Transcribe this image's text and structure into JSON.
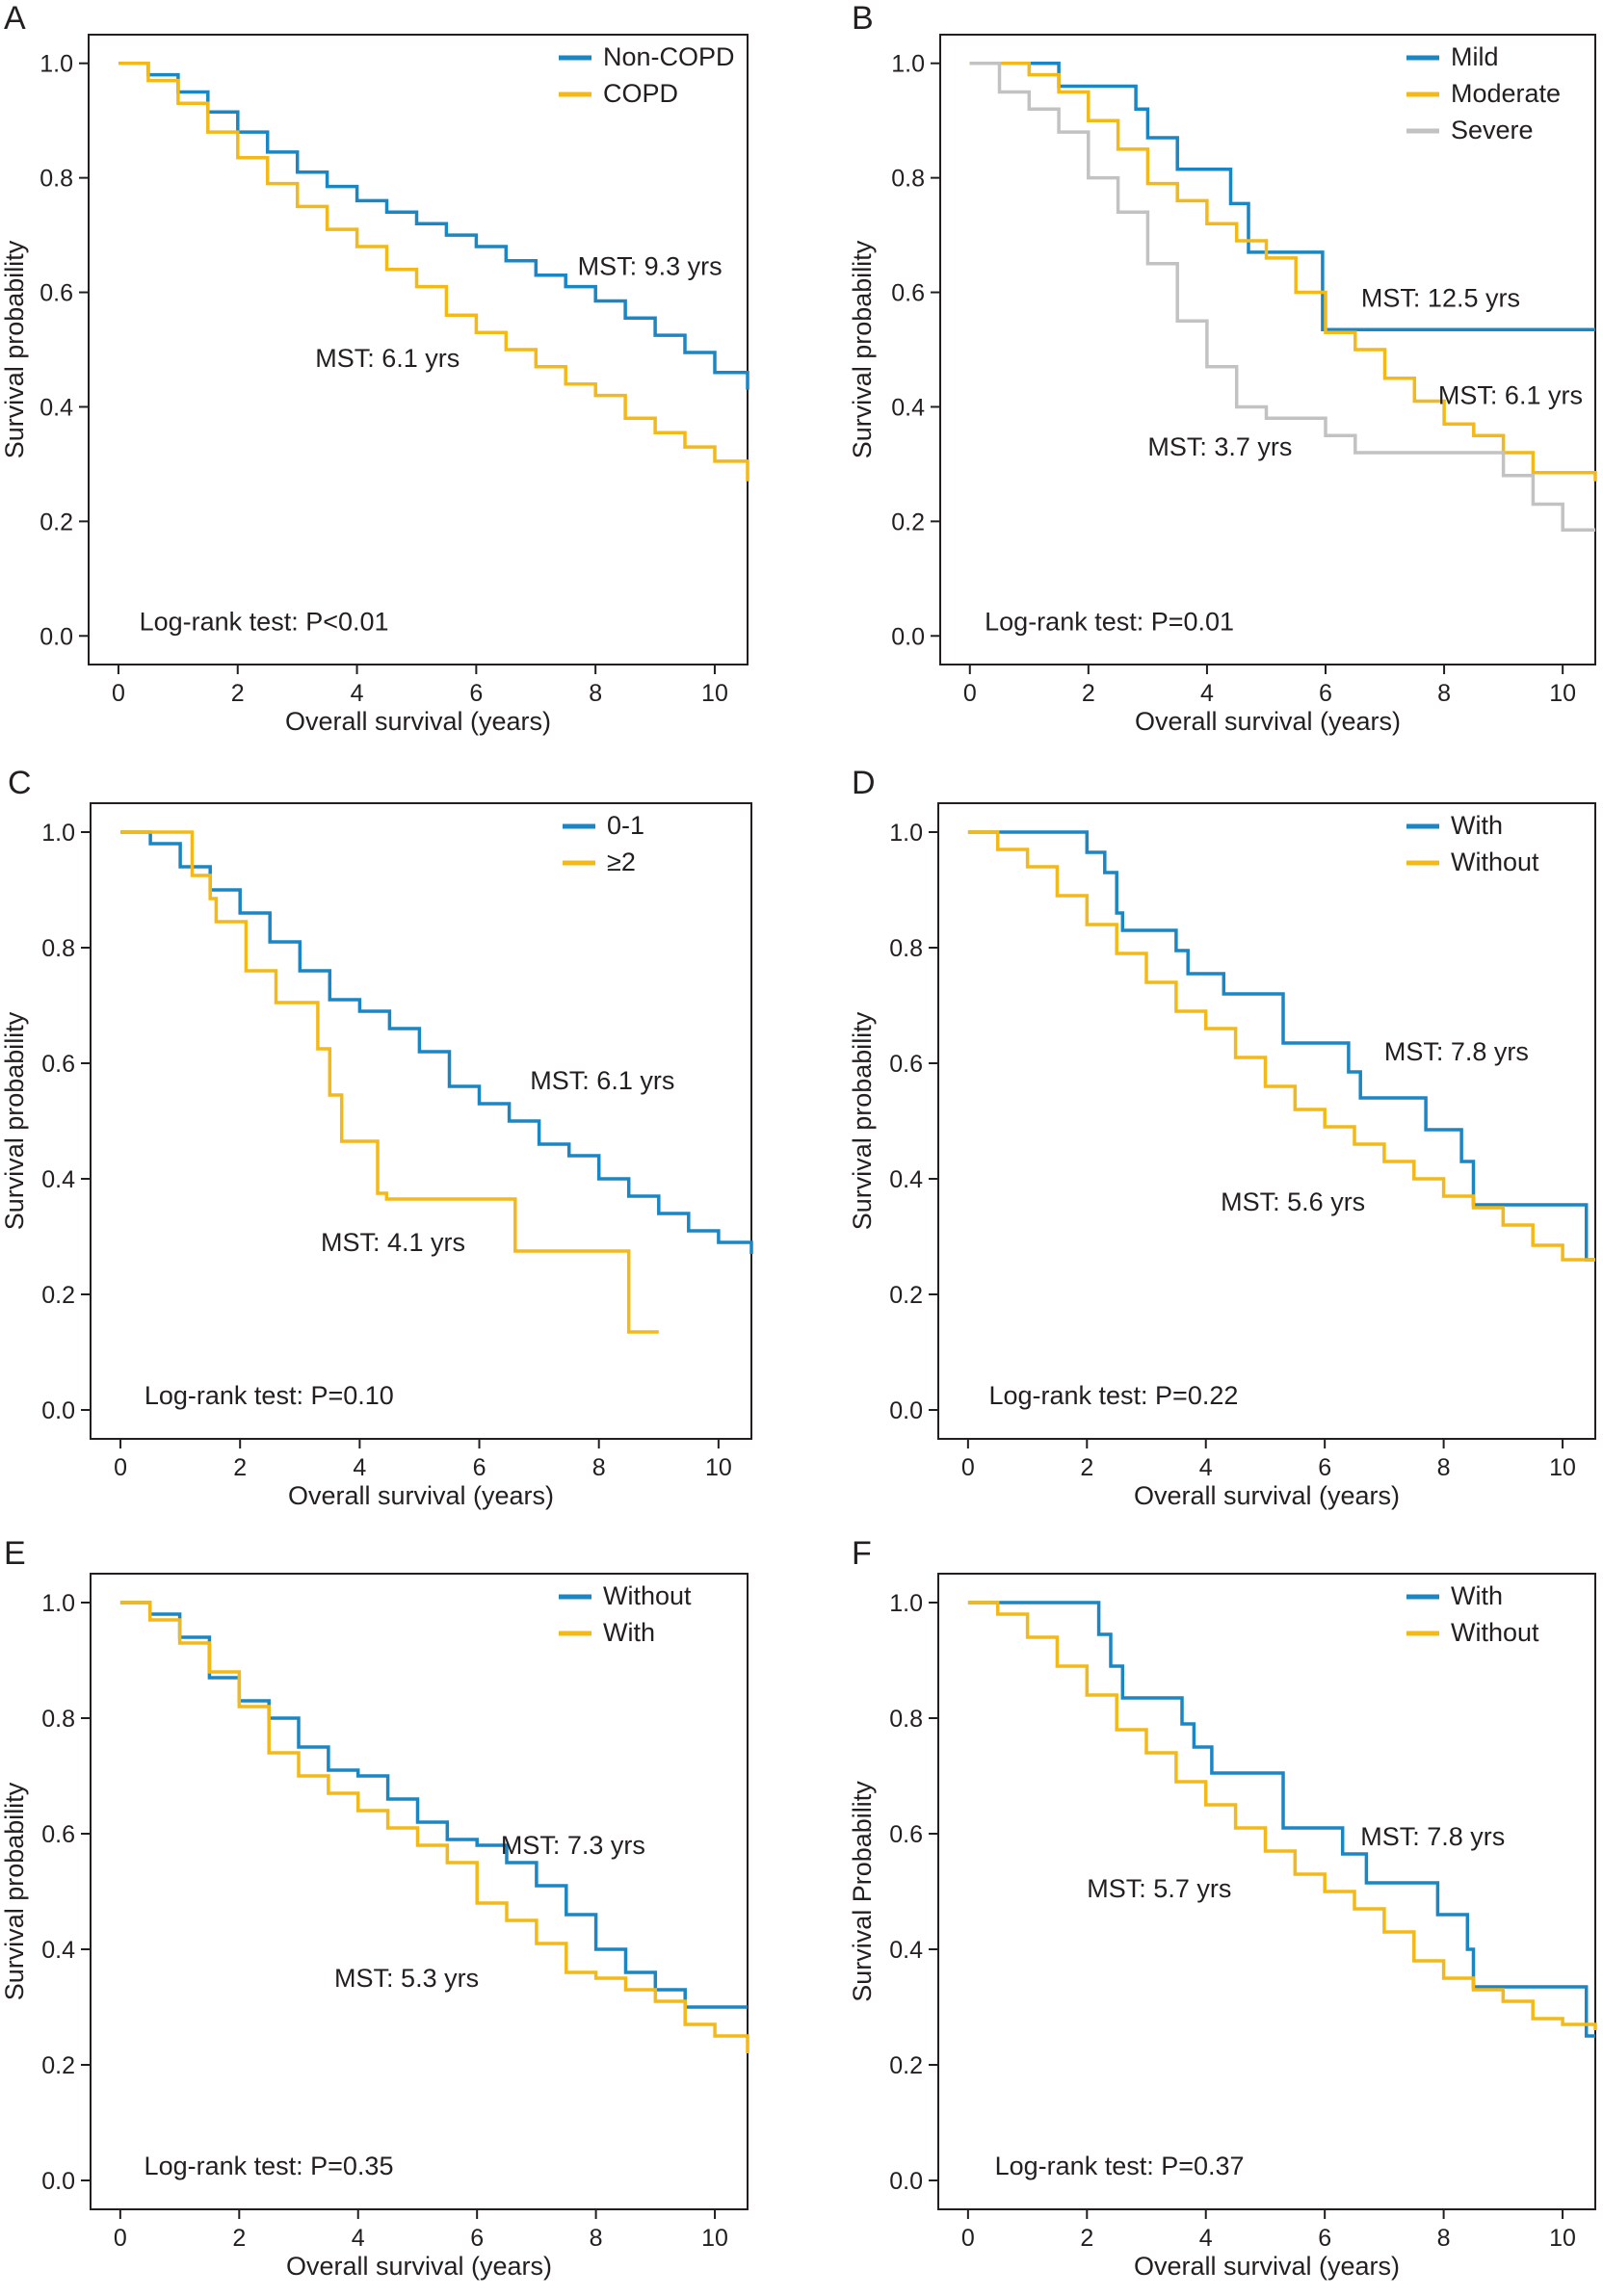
{
  "colors": {
    "blue": "#1a86c4",
    "yellow": "#f4b817",
    "gray": "#c2c2c2"
  },
  "chart_data": [
    {
      "letter": "A",
      "type": "line",
      "step": true,
      "xlabel": "Overall survival (years)",
      "ylabel": "Survival probability",
      "xlim": [
        -0.5,
        10.55
      ],
      "ylim": [
        -0.05,
        1.05
      ],
      "xticks": [
        "0",
        "2",
        "4",
        "6",
        "8",
        "10"
      ],
      "yticks": [
        "0.0",
        "0.2",
        "0.4",
        "0.6",
        "0.8",
        "1.0"
      ],
      "legend_position": "top-right",
      "series": [
        {
          "name": "Non-COPD",
          "color": "blue",
          "x": [
            0,
            0.5,
            1,
            1.5,
            2,
            2.5,
            3,
            3.5,
            4,
            4.5,
            5,
            5.5,
            6,
            6.5,
            7,
            7.5,
            8,
            8.5,
            9,
            9.5,
            10,
            10.55
          ],
          "y": [
            1.0,
            0.98,
            0.95,
            0.915,
            0.88,
            0.845,
            0.81,
            0.785,
            0.76,
            0.74,
            0.72,
            0.7,
            0.68,
            0.655,
            0.63,
            0.61,
            0.585,
            0.555,
            0.525,
            0.495,
            0.46,
            0.43
          ]
        },
        {
          "name": "COPD",
          "color": "yellow",
          "x": [
            0,
            0.5,
            1,
            1.5,
            2,
            2.5,
            3,
            3.5,
            4,
            4.5,
            5,
            5.5,
            6,
            6.5,
            7,
            7.5,
            8,
            8.5,
            9,
            9.5,
            10,
            10.55
          ],
          "y": [
            1.0,
            0.97,
            0.93,
            0.88,
            0.835,
            0.79,
            0.75,
            0.71,
            0.68,
            0.64,
            0.61,
            0.56,
            0.53,
            0.5,
            0.47,
            0.44,
            0.42,
            0.38,
            0.355,
            0.33,
            0.305,
            0.27
          ]
        }
      ],
      "annotations": [
        {
          "text": "MST: 9.3 yrs",
          "x": 7.7,
          "y": 0.63
        },
        {
          "text": "MST: 6.1 yrs",
          "x": 3.3,
          "y": 0.47
        },
        {
          "text": "Log-rank test: P<0.01",
          "x": 0.35,
          "y": 0.01
        }
      ]
    },
    {
      "letter": "B",
      "type": "line",
      "step": true,
      "xlabel": "Overall survival (years)",
      "ylabel": "Survival probability",
      "xlim": [
        -0.5,
        10.55
      ],
      "ylim": [
        -0.05,
        1.05
      ],
      "xticks": [
        "0",
        "2",
        "4",
        "6",
        "8",
        "10"
      ],
      "yticks": [
        "0.0",
        "0.2",
        "0.4",
        "0.6",
        "0.8",
        "1.0"
      ],
      "legend_position": "top-right",
      "series": [
        {
          "name": "Mild",
          "color": "blue",
          "x": [
            0,
            1.5,
            2.8,
            3.0,
            3.5,
            4.4,
            4.7,
            5.95,
            10.55
          ],
          "y": [
            1.0,
            0.96,
            0.92,
            0.87,
            0.815,
            0.755,
            0.67,
            0.535,
            0.535
          ]
        },
        {
          "name": "Moderate",
          "color": "yellow",
          "x": [
            0,
            0.5,
            1,
            1.5,
            2,
            2.5,
            3,
            3.5,
            4,
            4.5,
            5,
            5.5,
            6,
            6.5,
            7,
            7.5,
            8,
            8.5,
            9,
            9.5,
            10,
            10.55
          ],
          "y": [
            1.0,
            1.0,
            0.98,
            0.95,
            0.9,
            0.85,
            0.79,
            0.76,
            0.72,
            0.69,
            0.66,
            0.6,
            0.53,
            0.5,
            0.45,
            0.41,
            0.37,
            0.35,
            0.32,
            0.285,
            0.285,
            0.27
          ]
        },
        {
          "name": "Severe",
          "color": "gray",
          "x": [
            0,
            0.5,
            1,
            1.5,
            2,
            2.5,
            3,
            3.5,
            4,
            4.5,
            5,
            5.5,
            6,
            6.5,
            7,
            7.5,
            8,
            8.5,
            9,
            9.5,
            10,
            10.55
          ],
          "y": [
            1.0,
            0.95,
            0.92,
            0.88,
            0.8,
            0.74,
            0.65,
            0.55,
            0.47,
            0.4,
            0.38,
            0.38,
            0.35,
            0.32,
            0.32,
            0.32,
            0.32,
            0.32,
            0.28,
            0.23,
            0.185,
            0.185
          ]
        }
      ],
      "annotations": [
        {
          "text": "MST: 12.5 yrs",
          "x": 6.6,
          "y": 0.575
        },
        {
          "text": "MST: 6.1 yrs",
          "x": 7.9,
          "y": 0.405
        },
        {
          "text": "MST: 3.7 yrs",
          "x": 3.0,
          "y": 0.315
        },
        {
          "text": "Log-rank test: P=0.01",
          "x": 0.25,
          "y": 0.01
        }
      ]
    },
    {
      "letter": "C",
      "type": "line",
      "step": true,
      "xlabel": "Overall survival (years)",
      "ylabel": "Survival probability",
      "xlim": [
        -0.5,
        10.55
      ],
      "ylim": [
        -0.05,
        1.05
      ],
      "xticks": [
        "0",
        "2",
        "4",
        "6",
        "8",
        "10"
      ],
      "yticks": [
        "0.0",
        "0.2",
        "0.4",
        "0.6",
        "0.8",
        "1.0"
      ],
      "legend_position": "top-right",
      "series": [
        {
          "name": "0-1",
          "color": "blue",
          "x": [
            0,
            0.5,
            1,
            1.5,
            2,
            2.5,
            3,
            3.5,
            4,
            4.5,
            5,
            5.5,
            6,
            6.5,
            7,
            7.5,
            8,
            8.5,
            9,
            9.5,
            10,
            10.55
          ],
          "y": [
            1.0,
            0.98,
            0.94,
            0.9,
            0.86,
            0.81,
            0.76,
            0.71,
            0.69,
            0.66,
            0.62,
            0.56,
            0.53,
            0.5,
            0.46,
            0.44,
            0.4,
            0.37,
            0.34,
            0.31,
            0.29,
            0.27
          ]
        },
        {
          "name": "≥2",
          "color": "yellow",
          "x": [
            0,
            1.2,
            1.5,
            1.6,
            2.1,
            2.6,
            3.3,
            3.5,
            3.7,
            4.3,
            4.45,
            6.6,
            8.5,
            9.0
          ],
          "y": [
            1.0,
            0.925,
            0.885,
            0.845,
            0.76,
            0.705,
            0.625,
            0.545,
            0.465,
            0.375,
            0.365,
            0.275,
            0.135,
            0.135
          ]
        }
      ],
      "annotations": [
        {
          "text": "MST: 6.1 yrs",
          "x": 6.85,
          "y": 0.555
        },
        {
          "text": "MST: 4.1 yrs",
          "x": 3.35,
          "y": 0.275
        },
        {
          "text": "Log-rank test: P=0.10",
          "x": 0.4,
          "y": 0.01
        }
      ]
    },
    {
      "letter": "D",
      "type": "line",
      "step": true,
      "xlabel": "Overall survival (years)",
      "ylabel": "Survival probability",
      "xlim": [
        -0.5,
        10.55
      ],
      "ylim": [
        -0.05,
        1.05
      ],
      "xticks": [
        "0",
        "2",
        "4",
        "6",
        "8",
        "10"
      ],
      "yticks": [
        "0.0",
        "0.2",
        "0.4",
        "0.6",
        "0.8",
        "1.0"
      ],
      "legend_position": "top-right",
      "series": [
        {
          "name": "With",
          "color": "blue",
          "x": [
            0,
            2.0,
            2.3,
            2.5,
            2.6,
            3.5,
            3.7,
            4.3,
            5.3,
            6.4,
            6.6,
            7.7,
            8.3,
            8.5,
            10.4,
            10.55
          ],
          "y": [
            1.0,
            0.965,
            0.93,
            0.86,
            0.83,
            0.795,
            0.755,
            0.72,
            0.635,
            0.585,
            0.54,
            0.485,
            0.43,
            0.355,
            0.26,
            0.26
          ]
        },
        {
          "name": "Without",
          "color": "yellow",
          "x": [
            0,
            0.5,
            1,
            1.5,
            2,
            2.5,
            3,
            3.5,
            4,
            4.5,
            5,
            5.5,
            6,
            6.5,
            7,
            7.5,
            8,
            8.5,
            9,
            9.5,
            10,
            10.55
          ],
          "y": [
            1.0,
            0.97,
            0.94,
            0.89,
            0.84,
            0.79,
            0.74,
            0.69,
            0.66,
            0.61,
            0.56,
            0.52,
            0.49,
            0.46,
            0.43,
            0.4,
            0.37,
            0.35,
            0.32,
            0.285,
            0.26,
            0.26
          ]
        }
      ],
      "annotations": [
        {
          "text": "MST: 7.8 yrs",
          "x": 7.0,
          "y": 0.605
        },
        {
          "text": "MST: 5.6 yrs",
          "x": 4.25,
          "y": 0.345
        },
        {
          "text": "Log-rank test: P=0.22",
          "x": 0.35,
          "y": 0.01
        }
      ]
    },
    {
      "letter": "E",
      "type": "line",
      "step": true,
      "xlabel": "Overall survival (years)",
      "ylabel": "Survival probability",
      "xlim": [
        -0.5,
        10.55
      ],
      "ylim": [
        -0.05,
        1.05
      ],
      "xticks": [
        "0",
        "2",
        "4",
        "6",
        "8",
        "10"
      ],
      "yticks": [
        "0.0",
        "0.2",
        "0.4",
        "0.6",
        "0.8",
        "1.0"
      ],
      "legend_position": "top-right",
      "series": [
        {
          "name": "Without",
          "color": "blue",
          "x": [
            0,
            0.5,
            1,
            1.5,
            2,
            2.5,
            3,
            3.5,
            4,
            4.5,
            5,
            5.5,
            6,
            6.5,
            7,
            7.5,
            8,
            8.5,
            9,
            9.5,
            10,
            10.55
          ],
          "y": [
            1.0,
            0.98,
            0.94,
            0.87,
            0.83,
            0.8,
            0.75,
            0.71,
            0.7,
            0.66,
            0.62,
            0.59,
            0.58,
            0.55,
            0.51,
            0.46,
            0.4,
            0.36,
            0.33,
            0.3,
            0.3,
            0.3
          ]
        },
        {
          "name": "With",
          "color": "yellow",
          "x": [
            0,
            0.5,
            1,
            1.5,
            2,
            2.5,
            3,
            3.5,
            4,
            4.5,
            5,
            5.5,
            6,
            6.5,
            7,
            7.5,
            8,
            8.5,
            9,
            9.5,
            10,
            10.55
          ],
          "y": [
            1.0,
            0.97,
            0.93,
            0.88,
            0.82,
            0.74,
            0.7,
            0.67,
            0.64,
            0.61,
            0.58,
            0.55,
            0.48,
            0.45,
            0.41,
            0.36,
            0.35,
            0.33,
            0.31,
            0.27,
            0.25,
            0.22
          ]
        }
      ],
      "annotations": [
        {
          "text": "MST: 7.3 yrs",
          "x": 6.4,
          "y": 0.565
        },
        {
          "text": "MST: 5.3 yrs",
          "x": 3.6,
          "y": 0.335
        },
        {
          "text": "Log-rank test: P=0.35",
          "x": 0.4,
          "y": 0.01
        }
      ]
    },
    {
      "letter": "F",
      "type": "line",
      "step": true,
      "xlabel": "Overall survival (years)",
      "ylabel": "Survival Probability",
      "xlim": [
        -0.5,
        10.55
      ],
      "ylim": [
        -0.05,
        1.05
      ],
      "xticks": [
        "0",
        "2",
        "4",
        "6",
        "8",
        "10"
      ],
      "yticks": [
        "0.0",
        "0.2",
        "0.4",
        "0.6",
        "0.8",
        "1.0"
      ],
      "legend_position": "top-right",
      "series": [
        {
          "name": "With",
          "color": "blue",
          "x": [
            0,
            2.2,
            2.4,
            2.6,
            3.6,
            3.8,
            4.1,
            5.3,
            6.3,
            6.7,
            7.9,
            8.4,
            8.5,
            10.4,
            10.55
          ],
          "y": [
            1.0,
            0.945,
            0.89,
            0.835,
            0.79,
            0.75,
            0.705,
            0.61,
            0.565,
            0.515,
            0.46,
            0.4,
            0.335,
            0.25,
            0.25
          ]
        },
        {
          "name": "Without",
          "color": "yellow",
          "x": [
            0,
            0.5,
            1,
            1.5,
            2,
            2.5,
            3,
            3.5,
            4,
            4.5,
            5,
            5.5,
            6,
            6.5,
            7,
            7.5,
            8,
            8.5,
            9,
            9.5,
            10,
            10.55
          ],
          "y": [
            1.0,
            0.98,
            0.94,
            0.89,
            0.84,
            0.78,
            0.74,
            0.69,
            0.65,
            0.61,
            0.57,
            0.53,
            0.5,
            0.47,
            0.43,
            0.38,
            0.35,
            0.33,
            0.31,
            0.28,
            0.27,
            0.26
          ]
        }
      ],
      "annotations": [
        {
          "text": "MST: 7.8 yrs",
          "x": 6.6,
          "y": 0.58
        },
        {
          "text": "MST: 5.7 yrs",
          "x": 2.0,
          "y": 0.49
        },
        {
          "text": "Log-rank test: P=0.37",
          "x": 0.45,
          "y": 0.01
        }
      ]
    }
  ]
}
